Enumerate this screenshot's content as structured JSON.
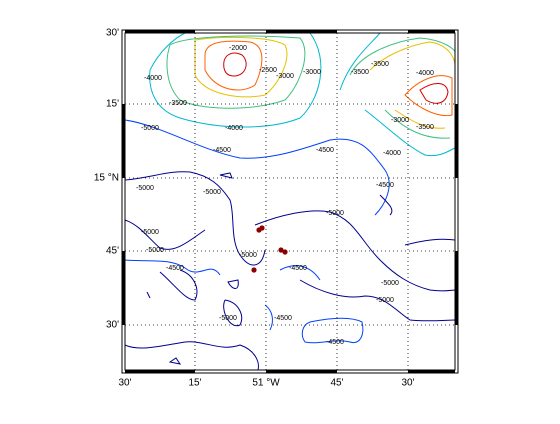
{
  "map": {
    "left_labels": [
      "30'",
      "15'",
      "15 °N",
      "45'",
      "30'"
    ],
    "bottom_labels": [
      "30'",
      "15'",
      "51 °W",
      "45'",
      "30'"
    ],
    "contour_labels": [
      "-2000",
      "-4000",
      "-2500",
      "-3000",
      "-3000",
      "-3500",
      "-3500",
      "-4000",
      "-3500",
      "-3000",
      "-3500",
      "-4000",
      "-5000",
      "-4500",
      "-4500",
      "-4000",
      "-5000",
      "-5000",
      "-4500",
      "-5000",
      "-5000",
      "-5000",
      "-5000",
      "-4500",
      "-4500",
      "-5000",
      "-5000",
      "-5000",
      "-4500",
      "-4500"
    ]
  }
}
